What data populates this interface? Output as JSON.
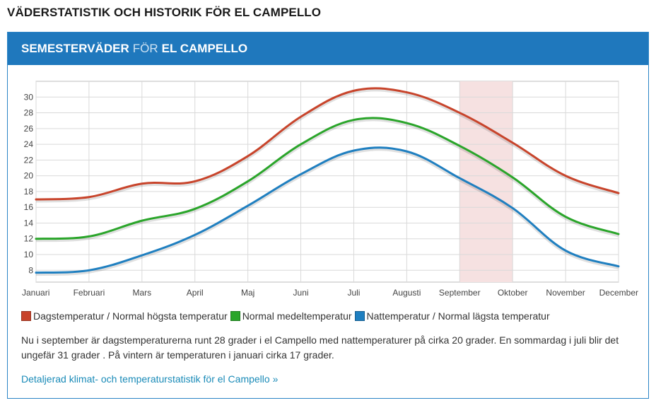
{
  "page": {
    "heading": "VÄDERSTATISTIK OCH HISTORIK FÖR EL CAMPELLO"
  },
  "card": {
    "title_part1": "SEMESTERVÄDER",
    "title_part2": "FÖR",
    "title_part3": "EL CAMPELLO",
    "header_color": "#1f78bd"
  },
  "chart_data": {
    "type": "line",
    "categories": [
      "Januari",
      "Februari",
      "Mars",
      "April",
      "Maj",
      "Juni",
      "Juli",
      "Augusti",
      "September",
      "Oktober",
      "November",
      "December"
    ],
    "ylim": [
      6.5,
      32
    ],
    "yticks": [
      8,
      10,
      12,
      14,
      16,
      18,
      20,
      22,
      24,
      26,
      28,
      30
    ],
    "grid": true,
    "highlight_month": "September",
    "highlight_color": "#f6e1e1",
    "series": [
      {
        "name": "Dagstemperatur / Normal högsta temperatur",
        "color": "#c8442b",
        "values": [
          17,
          17.3,
          19,
          19.3,
          22.5,
          27.5,
          30.8,
          30.6,
          28,
          24.2,
          20,
          17.8
        ]
      },
      {
        "name": "Normal medeltemperatur",
        "color": "#2aa52a",
        "values": [
          12,
          12.3,
          14.3,
          15.8,
          19.3,
          24,
          27.1,
          26.7,
          23.8,
          19.8,
          14.8,
          12.6
        ]
      },
      {
        "name": "Nattemperatur / Normal lägsta temperatur",
        "color": "#1f7fc0",
        "values": [
          7.7,
          8,
          9.9,
          12.5,
          16.2,
          20.2,
          23.2,
          23.1,
          19.7,
          15.9,
          10.5,
          8.5
        ]
      }
    ]
  },
  "legend": [
    {
      "label": "Dagstemperatur / Normal högsta temperatur",
      "color": "#c8442b"
    },
    {
      "label": "Normal medeltemperatur",
      "color": "#2aa52a"
    },
    {
      "label": "Nattemperatur / Normal lägsta temperatur",
      "color": "#1f7fc0"
    }
  ],
  "description": "Nu i september är dagstemperaturerna runt 28 grader i el Campello med nattemperaturer på cirka 20 grader. En sommardag i juli blir det ungefär 31 grader . På vintern är temperaturen i januari cirka 17 grader.",
  "link": {
    "text": "Detaljerad klimat- och temperaturstatistik för el Campello »"
  }
}
